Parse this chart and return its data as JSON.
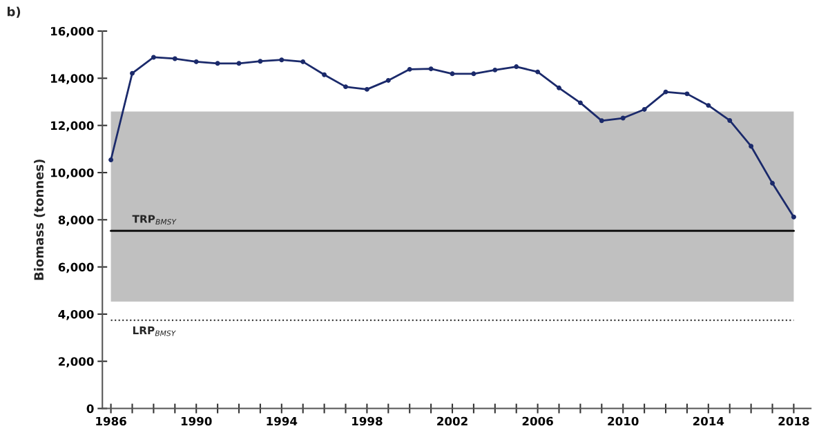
{
  "chart_data": {
    "type": "line",
    "ylabel": "Biomass (tonnes)",
    "annotations": [
      "b)"
    ],
    "x": [
      1986,
      1987,
      1988,
      1989,
      1990,
      1991,
      1992,
      1993,
      1994,
      1995,
      1996,
      1997,
      1998,
      1999,
      2000,
      2001,
      2002,
      2003,
      2004,
      2005,
      2006,
      2007,
      2008,
      2009,
      2010,
      2011,
      2012,
      2013,
      2014,
      2015,
      2016,
      2017,
      2018
    ],
    "series": [
      {
        "color": "#1b2a6b",
        "values": [
          10540,
          14210,
          14890,
          14830,
          14700,
          14630,
          14630,
          14720,
          14780,
          14700,
          14150,
          13640,
          13530,
          13910,
          14380,
          14400,
          14190,
          14190,
          14350,
          14490,
          14270,
          13590,
          12960,
          12200,
          12310,
          12680,
          13420,
          13340,
          12850,
          12210,
          11120,
          9550,
          8120
        ]
      }
    ],
    "xlim": [
      1985.6,
      2018.8
    ],
    "xticks": [
      1986,
      {
        "value": 1987,
        "label": null
      },
      {
        "value": 1988,
        "label": null
      },
      {
        "value": 1989,
        "label": null
      },
      1990,
      {
        "value": 1991,
        "label": null
      },
      {
        "value": 1992,
        "label": null
      },
      {
        "value": 1993,
        "label": null
      },
      1994,
      {
        "value": 1995,
        "label": null
      },
      {
        "value": 1996,
        "label": null
      },
      {
        "value": 1997,
        "label": null
      },
      1998,
      {
        "value": 1999,
        "label": null
      },
      {
        "value": 2000,
        "label": null
      },
      {
        "value": 2001,
        "label": null
      },
      2002,
      {
        "value": 2003,
        "label": null
      },
      {
        "value": 2004,
        "label": null
      },
      {
        "value": 2005,
        "label": null
      },
      2006,
      {
        "value": 2007,
        "label": null
      },
      {
        "value": 2008,
        "label": null
      },
      {
        "value": 2009,
        "label": null
      },
      2010,
      {
        "value": 2011,
        "label": null
      },
      {
        "value": 2012,
        "label": null
      },
      {
        "value": 2013,
        "label": null
      },
      2014,
      {
        "value": 2015,
        "label": null
      },
      {
        "value": 2016,
        "label": null
      },
      {
        "value": 2017,
        "label": null
      },
      2018
    ],
    "ylim": [
      0,
      16000
    ],
    "yticks": [
      {
        "value": 0,
        "label": "0"
      },
      {
        "value": 2000,
        "label": "2,000"
      },
      {
        "value": 4000,
        "label": "4,000"
      },
      {
        "value": 6000,
        "label": "6,000"
      },
      {
        "value": 8000,
        "label": "8,000"
      },
      {
        "value": 10000,
        "label": "10,000"
      },
      {
        "value": 12000,
        "label": "12,000"
      },
      {
        "value": 14000,
        "label": "14,000"
      },
      {
        "value": 16000,
        "label": "16,000"
      }
    ],
    "ref_lines": [
      {
        "axis": "y",
        "value": 7530,
        "label": "TRP$_{BMSY}$",
        "color": "#111111",
        "line_style": "solid"
      },
      {
        "axis": "y",
        "value": 3740,
        "label": "LRP$_{BMSY}$",
        "color": "#222222",
        "line_style": "dotted"
      }
    ],
    "bands": [
      {
        "axis": "y",
        "from": 4530,
        "to": 12590,
        "color": "#c0c0c0"
      }
    ],
    "grid": false,
    "legend": false,
    "marker": "circle",
    "line_style": "solid"
  }
}
